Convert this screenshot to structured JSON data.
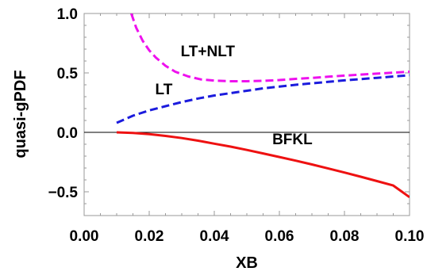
{
  "chart_data": {
    "type": "line",
    "xlabel": "XB",
    "ylabel": "quasi-gPDF",
    "xlim": [
      0.0,
      0.1
    ],
    "ylim": [
      -0.7,
      1.0
    ],
    "x_ticks": [
      "0.00",
      "0.02",
      "0.04",
      "0.06",
      "0.08",
      "0.10"
    ],
    "y_ticks": [
      "1.0",
      "0.5",
      "0.0",
      "−0.5"
    ],
    "grid": false,
    "zero_line": true,
    "series": [
      {
        "name": "LT+NLT",
        "color": "#ee11ee",
        "style": "dashed",
        "x": [
          0.0145,
          0.016,
          0.018,
          0.02,
          0.022,
          0.025,
          0.028,
          0.032,
          0.036,
          0.04,
          0.045,
          0.05,
          0.055,
          0.06,
          0.065,
          0.07,
          0.075,
          0.08,
          0.085,
          0.09,
          0.095,
          0.1
        ],
        "y": [
          1.0,
          0.88,
          0.77,
          0.69,
          0.63,
          0.56,
          0.51,
          0.47,
          0.445,
          0.435,
          0.43,
          0.43,
          0.433,
          0.44,
          0.45,
          0.458,
          0.468,
          0.477,
          0.486,
          0.494,
          0.502,
          0.51
        ]
      },
      {
        "name": "LT",
        "color": "#1b1bdd",
        "style": "dashed",
        "x": [
          0.01,
          0.015,
          0.02,
          0.025,
          0.03,
          0.035,
          0.04,
          0.045,
          0.05,
          0.055,
          0.06,
          0.065,
          0.07,
          0.075,
          0.08,
          0.085,
          0.09,
          0.095,
          0.1
        ],
        "y": [
          0.08,
          0.14,
          0.185,
          0.22,
          0.255,
          0.285,
          0.31,
          0.33,
          0.35,
          0.37,
          0.385,
          0.4,
          0.413,
          0.425,
          0.437,
          0.448,
          0.459,
          0.47,
          0.48
        ]
      },
      {
        "name": "BFKL",
        "color": "#ee1111",
        "style": "solid",
        "x": [
          0.01,
          0.015,
          0.02,
          0.025,
          0.03,
          0.035,
          0.04,
          0.045,
          0.05,
          0.055,
          0.06,
          0.065,
          0.07,
          0.075,
          0.08,
          0.085,
          0.09,
          0.095,
          0.1
        ],
        "y": [
          0.0,
          -0.005,
          -0.015,
          -0.03,
          -0.048,
          -0.07,
          -0.095,
          -0.12,
          -0.148,
          -0.177,
          -0.207,
          -0.238,
          -0.27,
          -0.304,
          -0.338,
          -0.373,
          -0.41,
          -0.447,
          -0.545
        ]
      }
    ],
    "annotations": [
      {
        "text": "LT+NLT",
        "x": 0.038,
        "y": 0.64
      },
      {
        "text": "LT",
        "x": 0.0245,
        "y": 0.32
      },
      {
        "text": "BFKL",
        "x": 0.064,
        "y": -0.1
      }
    ]
  }
}
